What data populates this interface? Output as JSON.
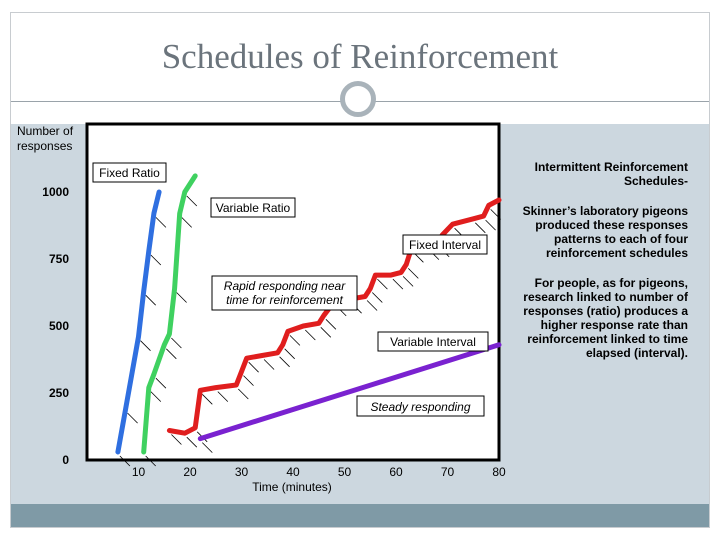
{
  "slide": {
    "title": "Schedules of Reinforcement"
  },
  "side_panel": {
    "heading": "Intermittent Reinforcement Schedules-",
    "paragraph1": "Skinner’s laboratory pigeons produced these responses patterns to each of four reinforcement schedules",
    "paragraph2": "For people, as for pigeons, research linked to number of responses (ratio) produces a higher response rate than reinforcement linked to time elapsed (interval)."
  },
  "chart_data": {
    "type": "line",
    "ylabel": "Number of responses",
    "xlabel": "Time (minutes)",
    "xlim": [
      0,
      80
    ],
    "ylim": [
      0,
      1000
    ],
    "x_ticks": [
      10,
      20,
      30,
      40,
      50,
      60,
      70,
      80
    ],
    "y_ticks": [
      0,
      250,
      500,
      750,
      1000
    ],
    "grid": false,
    "series": [
      {
        "name": "Fixed Ratio",
        "color": "#2f6fe0",
        "x": [
          6,
          7.5,
          10,
          11,
          12,
          13,
          14
        ],
        "y": [
          30,
          190,
          460,
          630,
          780,
          920,
          1000
        ]
      },
      {
        "name": "Variable Ratio",
        "color": "#3fd160",
        "x": [
          11,
          12,
          13,
          15,
          16,
          17,
          18,
          19,
          21
        ],
        "y": [
          30,
          270,
          320,
          430,
          470,
          640,
          920,
          1000,
          1060
        ]
      },
      {
        "name": "Fixed Interval",
        "color": "#e01e1e",
        "x": [
          16,
          19,
          21,
          22,
          25,
          29,
          30,
          31,
          34,
          37,
          38,
          39,
          42,
          45,
          46,
          48,
          51,
          54,
          55,
          56,
          59,
          61,
          62,
          63,
          66,
          68,
          69,
          71,
          75,
          77,
          78,
          80
        ],
        "y": [
          110,
          100,
          120,
          260,
          270,
          280,
          330,
          380,
          390,
          400,
          430,
          480,
          500,
          510,
          540,
          590,
          600,
          610,
          640,
          690,
          690,
          700,
          730,
          790,
          800,
          810,
          840,
          880,
          900,
          910,
          950,
          970
        ]
      },
      {
        "name": "Variable Interval",
        "color": "#7a22d0",
        "x": [
          22,
          80
        ],
        "y": [
          80,
          430
        ]
      }
    ],
    "annotations": [
      {
        "text": "Rapid responding near time for reinforcement"
      },
      {
        "text": "Steady responding"
      }
    ]
  }
}
